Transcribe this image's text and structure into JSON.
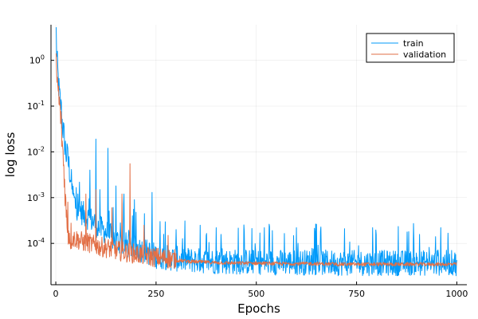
{
  "chart_data": {
    "type": "line",
    "title": "",
    "xlabel": "Epochs",
    "ylabel": "log loss",
    "xlim": [
      -12,
      1025
    ],
    "ylim": [
      1.25e-05,
      6.0
    ],
    "yscale": "log",
    "grid": true,
    "legend_position": "top-right",
    "x_ticks": [
      {
        "value": 0,
        "label": "0"
      },
      {
        "value": 250,
        "label": "250"
      },
      {
        "value": 500,
        "label": "500"
      },
      {
        "value": 750,
        "label": "750"
      },
      {
        "value": 1000,
        "label": "1000"
      }
    ],
    "y_ticks": [
      {
        "value": 1,
        "base": "10",
        "exp": "0"
      },
      {
        "value": 0.1,
        "base": "10",
        "exp": "-1"
      },
      {
        "value": 0.01,
        "base": "10",
        "exp": "-2"
      },
      {
        "value": 0.001,
        "base": "10",
        "exp": "-3"
      },
      {
        "value": 0.0001,
        "base": "10",
        "exp": "-4"
      }
    ],
    "series": [
      {
        "name": "train",
        "color": "#009AFA",
        "x": [
          1,
          3,
          6,
          9,
          12,
          15,
          18,
          22,
          26,
          30,
          35,
          40,
          45,
          50,
          60,
          70,
          80,
          90,
          100,
          110,
          120,
          130,
          140,
          150,
          160,
          170,
          180,
          190,
          200,
          210,
          220,
          230,
          240,
          250,
          270,
          290,
          310,
          340,
          370,
          400,
          450,
          500,
          550,
          600,
          650,
          700,
          750,
          800,
          850,
          900,
          950,
          1000
        ],
        "y": [
          3.8,
          0.9,
          0.35,
          0.15,
          0.1,
          0.05,
          0.03,
          0.015,
          0.008,
          0.006,
          0.0035,
          0.0015,
          0.0009,
          0.0006,
          0.0005,
          0.0004,
          0.00035,
          0.0003,
          0.00025,
          0.0002,
          0.00018,
          0.00015,
          0.00013,
          0.00011,
          0.0001,
          9e-05,
          8.5e-05,
          8e-05,
          7.5e-05,
          7e-05,
          6.5e-05,
          6e-05,
          5.5e-05,
          5e-05,
          4.7e-05,
          4.4e-05,
          4.2e-05,
          4e-05,
          3.9e-05,
          3.8e-05,
          3.7e-05,
          3.7e-05,
          3.6e-05,
          3.6e-05,
          3.6e-05,
          3.5e-05,
          3.5e-05,
          3.5e-05,
          3.5e-05,
          3.5e-05,
          3.5e-05,
          3.5e-05
        ],
        "spikes": [
          {
            "x": 14,
            "y": 0.12
          },
          {
            "x": 28,
            "y": 0.015
          },
          {
            "x": 55,
            "y": 0.0012
          },
          {
            "x": 85,
            "y": 0.004
          },
          {
            "x": 100,
            "y": 0.019
          },
          {
            "x": 110,
            "y": 0.0015
          },
          {
            "x": 130,
            "y": 0.012
          },
          {
            "x": 150,
            "y": 0.0018
          },
          {
            "x": 170,
            "y": 0.0012
          },
          {
            "x": 196,
            "y": 0.0009
          },
          {
            "x": 240,
            "y": 0.0013
          },
          {
            "x": 260,
            "y": 0.0003
          },
          {
            "x": 300,
            "y": 0.0002
          },
          {
            "x": 360,
            "y": 0.00025
          },
          {
            "x": 400,
            "y": 0.00022
          },
          {
            "x": 470,
            "y": 0.00018
          },
          {
            "x": 520,
            "y": 0.00022
          },
          {
            "x": 540,
            "y": 0.00019
          },
          {
            "x": 600,
            "y": 0.00022
          },
          {
            "x": 660,
            "y": 0.00018
          },
          {
            "x": 720,
            "y": 0.00021
          },
          {
            "x": 790,
            "y": 0.00022
          },
          {
            "x": 880,
            "y": 0.00018
          },
          {
            "x": 960,
            "y": 0.00022
          }
        ]
      },
      {
        "name": "validation",
        "color": "#E26F46",
        "x": [
          1,
          3,
          6,
          9,
          12,
          15,
          18,
          22,
          26,
          30,
          35,
          40,
          45,
          50,
          60,
          70,
          80,
          90,
          100,
          110,
          120,
          130,
          140,
          150,
          160,
          170,
          180,
          190,
          200,
          210,
          220,
          230,
          240,
          250,
          270,
          290,
          310,
          340,
          370,
          400,
          450,
          500,
          550,
          600,
          650,
          700,
          750,
          800,
          850,
          900,
          950,
          1000
        ],
        "y": [
          0.7,
          0.35,
          0.2,
          0.1,
          0.06,
          0.02,
          0.008,
          0.002,
          0.0004,
          0.00018,
          0.00014,
          0.00013,
          0.00012,
          0.00012,
          0.00011,
          0.0001,
          0.0001,
          9e-05,
          8.5e-05,
          8e-05,
          7.8e-05,
          7.5e-05,
          7e-05,
          6.8e-05,
          6.5e-05,
          6.2e-05,
          6e-05,
          5.8e-05,
          5.6e-05,
          5.4e-05,
          5.2e-05,
          5e-05,
          4.8e-05,
          4.7e-05,
          4.5e-05,
          4.3e-05,
          4.2e-05,
          4e-05,
          3.9e-05,
          3.8e-05,
          3.7e-05,
          3.7e-05,
          3.6e-05,
          3.6e-05,
          3.6e-05,
          3.5e-05,
          3.5e-05,
          3.5e-05,
          3.5e-05,
          3.5e-05,
          3.5e-05,
          3.5e-05
        ],
        "spikes": [
          {
            "x": 30,
            "y": 0.0008
          },
          {
            "x": 75,
            "y": 0.0012
          },
          {
            "x": 100,
            "y": 0.0015
          },
          {
            "x": 140,
            "y": 0.0006
          },
          {
            "x": 165,
            "y": 0.0012
          },
          {
            "x": 185,
            "y": 0.0055
          },
          {
            "x": 220,
            "y": 0.00025
          },
          {
            "x": 280,
            "y": 0.00015
          }
        ]
      }
    ]
  }
}
